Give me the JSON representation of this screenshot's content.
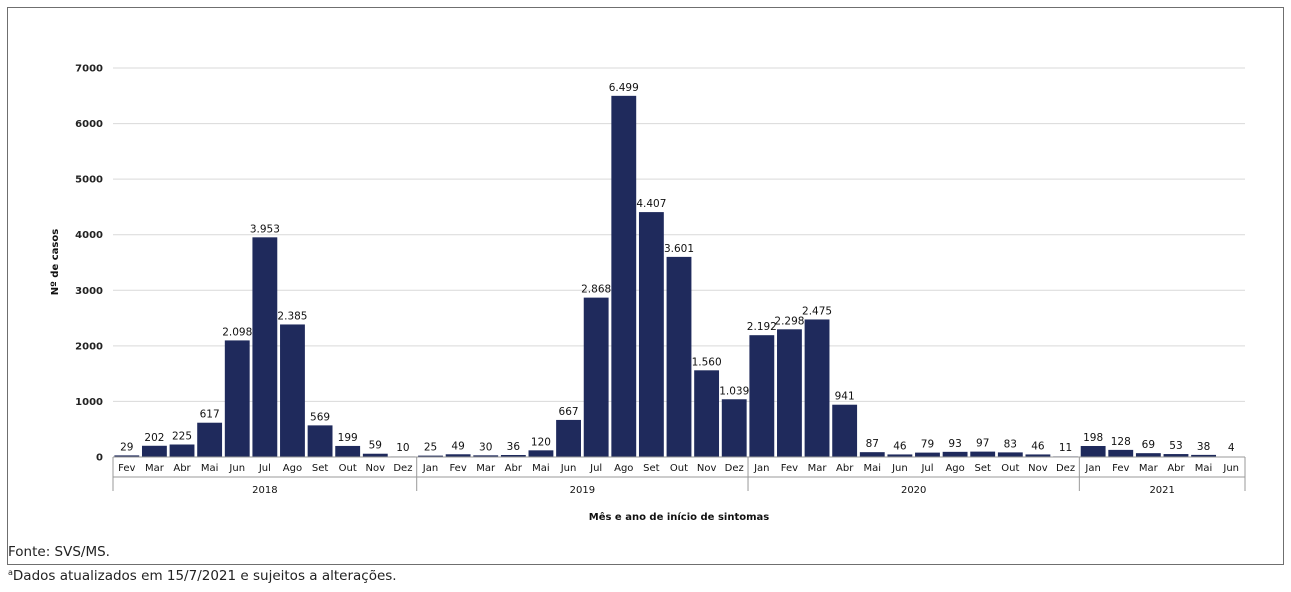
{
  "chart_data": {
    "type": "bar",
    "ylabel": "Nº de casos",
    "xlabel": "Mês e ano de início de sintomas",
    "ylim": [
      0,
      7000
    ],
    "yticks": [
      "0",
      "1000",
      "2000",
      "3000",
      "4000",
      "5000",
      "6000",
      "7000"
    ],
    "grid": true,
    "bar_color": "#1f2a5c",
    "groups": [
      {
        "year": "2018",
        "months": [
          "Fev",
          "Mar",
          "Abr",
          "Mai",
          "Jun",
          "Jul",
          "Ago",
          "Set",
          "Out",
          "Nov",
          "Dez"
        ],
        "values": [
          29,
          202,
          225,
          617,
          2098,
          3953,
          2385,
          569,
          199,
          59,
          10
        ],
        "labels": [
          "29",
          "202",
          "225",
          "617",
          "2.098",
          "3.953",
          "2.385",
          "569",
          "199",
          "59",
          "10"
        ]
      },
      {
        "year": "2019",
        "months": [
          "Jan",
          "Fev",
          "Mar",
          "Abr",
          "Mai",
          "Jun",
          "Jul",
          "Ago",
          "Set",
          "Out",
          "Nov",
          "Dez"
        ],
        "values": [
          25,
          49,
          30,
          36,
          120,
          667,
          2868,
          6499,
          4407,
          3601,
          1560,
          1039
        ],
        "labels": [
          "25",
          "49",
          "30",
          "36",
          "120",
          "667",
          "2.868",
          "6.499",
          "4.407",
          "3.601",
          "1.560",
          "1.039"
        ]
      },
      {
        "year": "2020",
        "months": [
          "Jan",
          "Fev",
          "Mar",
          "Abr",
          "Mai",
          "Jun",
          "Jul",
          "Ago",
          "Set",
          "Out",
          "Nov",
          "Dez"
        ],
        "values": [
          2192,
          2298,
          2475,
          941,
          87,
          46,
          79,
          93,
          97,
          83,
          46,
          11
        ],
        "labels": [
          "2.192",
          "2.298",
          "2.475",
          "941",
          "87",
          "46",
          "79",
          "93",
          "97",
          "83",
          "46",
          "11"
        ]
      },
      {
        "year": "2021",
        "months": [
          "Jan",
          "Fev",
          "Mar",
          "Abr",
          "Mai",
          "Jun"
        ],
        "values": [
          198,
          128,
          69,
          53,
          38,
          4
        ],
        "labels": [
          "198",
          "128",
          "69",
          "53",
          "38",
          "4"
        ]
      }
    ]
  },
  "notes": {
    "source": "Fonte: SVS/MS.",
    "footnote_mark": "a",
    "footnote": "Dados atualizados em 15/7/2021 e sujeitos a alterações."
  }
}
